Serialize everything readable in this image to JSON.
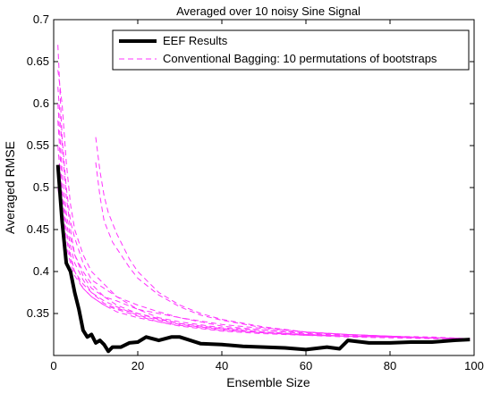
{
  "chart_data": {
    "type": "line",
    "title": "Averaged  over 10 noisy Sine Signal",
    "xlabel": "Ensemble Size",
    "ylabel": "Averaged RMSE",
    "xlim": [
      0,
      100
    ],
    "ylim": [
      0.3,
      0.7
    ],
    "xticks": [
      0,
      20,
      40,
      60,
      80,
      100
    ],
    "yticks": [
      0.35,
      0.4,
      0.45,
      0.5,
      0.55,
      0.6,
      0.65,
      0.7
    ],
    "ytick_labels": [
      "0.35",
      "0.4",
      "0.45",
      "0.5",
      "0.55",
      "0.6",
      "0.65",
      "0.7"
    ],
    "grid": false,
    "legend_position": "top-right",
    "series": [
      {
        "name": "EEF Results",
        "color": "#000000",
        "style": "solid",
        "x": [
          1,
          2,
          3,
          4,
          5,
          6,
          7,
          8,
          9,
          10,
          11,
          12,
          13,
          14,
          16,
          18,
          20,
          22,
          25,
          28,
          30,
          35,
          40,
          45,
          50,
          55,
          60,
          65,
          68,
          70,
          75,
          80,
          85,
          90,
          95,
          99
        ],
        "values": [
          0.527,
          0.46,
          0.41,
          0.4,
          0.375,
          0.355,
          0.33,
          0.322,
          0.325,
          0.315,
          0.318,
          0.313,
          0.305,
          0.31,
          0.31,
          0.315,
          0.316,
          0.322,
          0.318,
          0.322,
          0.322,
          0.314,
          0.313,
          0.311,
          0.31,
          0.309,
          0.307,
          0.31,
          0.308,
          0.318,
          0.315,
          0.315,
          0.316,
          0.316,
          0.318,
          0.319
        ]
      },
      {
        "name": "Conventional Bagging: 10 permutations of bootstraps",
        "color": "#ff33ff",
        "style": "dashed",
        "x": [
          1,
          2,
          3,
          4,
          5,
          7,
          9,
          12,
          15,
          20,
          25,
          30,
          40,
          50,
          60,
          70,
          80,
          90,
          99
        ],
        "values": [
          0.67,
          0.56,
          0.5,
          0.46,
          0.44,
          0.41,
          0.39,
          0.38,
          0.37,
          0.355,
          0.35,
          0.345,
          0.335,
          0.33,
          0.327,
          0.325,
          0.323,
          0.322,
          0.32
        ]
      },
      {
        "name": "",
        "color": "#ff33ff",
        "style": "dashed",
        "x": [
          1,
          2,
          3,
          4,
          5,
          7,
          9,
          12,
          15,
          20,
          25,
          30,
          40,
          50,
          60,
          70,
          80,
          90,
          99
        ],
        "values": [
          0.64,
          0.6,
          0.53,
          0.48,
          0.45,
          0.42,
          0.4,
          0.385,
          0.37,
          0.36,
          0.352,
          0.345,
          0.337,
          0.332,
          0.328,
          0.325,
          0.323,
          0.321,
          0.32
        ]
      },
      {
        "name": "",
        "color": "#ff33ff",
        "style": "dashed",
        "x": [
          1,
          2,
          3,
          4,
          5,
          7,
          9,
          12,
          15,
          20,
          25,
          30,
          40,
          50,
          60,
          70,
          80,
          90,
          99
        ],
        "values": [
          0.62,
          0.55,
          0.49,
          0.45,
          0.42,
          0.4,
          0.385,
          0.37,
          0.365,
          0.355,
          0.345,
          0.34,
          0.333,
          0.33,
          0.326,
          0.324,
          0.322,
          0.321,
          0.32
        ]
      },
      {
        "name": "",
        "color": "#ff33ff",
        "style": "dashed",
        "x": [
          1,
          2,
          3,
          4,
          5,
          7,
          9,
          12,
          15,
          20,
          25,
          30,
          40,
          50,
          60,
          70,
          80,
          90,
          99
        ],
        "values": [
          0.6,
          0.52,
          0.47,
          0.44,
          0.42,
          0.395,
          0.38,
          0.37,
          0.36,
          0.35,
          0.343,
          0.338,
          0.332,
          0.328,
          0.325,
          0.323,
          0.322,
          0.321,
          0.32
        ]
      },
      {
        "name": "",
        "color": "#ff33ff",
        "style": "dashed",
        "x": [
          1,
          2,
          3,
          4,
          5,
          7,
          9,
          12,
          15,
          20,
          25,
          30,
          40,
          50,
          60,
          70,
          80,
          90,
          99
        ],
        "values": [
          0.58,
          0.5,
          0.46,
          0.43,
          0.41,
          0.39,
          0.375,
          0.365,
          0.358,
          0.348,
          0.342,
          0.337,
          0.331,
          0.327,
          0.325,
          0.323,
          0.322,
          0.321,
          0.32
        ]
      },
      {
        "name": "",
        "color": "#ff33ff",
        "style": "dashed",
        "x": [
          1,
          2,
          3,
          4,
          5,
          7,
          9,
          12,
          15,
          20,
          25,
          30,
          40,
          50,
          60,
          70,
          80,
          90,
          99
        ],
        "values": [
          0.55,
          0.49,
          0.45,
          0.42,
          0.4,
          0.38,
          0.37,
          0.36,
          0.355,
          0.347,
          0.34,
          0.336,
          0.33,
          0.327,
          0.324,
          0.323,
          0.322,
          0.321,
          0.32
        ]
      },
      {
        "name": "",
        "color": "#ff33ff",
        "style": "dashed",
        "x": [
          1,
          2,
          3,
          4,
          5,
          7,
          9,
          12,
          15,
          20,
          25,
          30,
          40,
          50,
          60,
          70,
          80,
          90,
          99
        ],
        "values": [
          0.52,
          0.48,
          0.44,
          0.415,
          0.4,
          0.385,
          0.375,
          0.362,
          0.356,
          0.35,
          0.344,
          0.338,
          0.332,
          0.328,
          0.325,
          0.323,
          0.322,
          0.321,
          0.32
        ]
      },
      {
        "name": "",
        "color": "#ff33ff",
        "style": "dashed",
        "x": [
          10,
          11,
          12,
          13,
          15,
          18,
          20,
          25,
          30,
          35,
          40,
          50,
          60,
          70,
          80,
          90,
          99
        ],
        "values": [
          0.56,
          0.52,
          0.49,
          0.47,
          0.445,
          0.415,
          0.4,
          0.375,
          0.36,
          0.35,
          0.343,
          0.334,
          0.328,
          0.325,
          0.323,
          0.321,
          0.32
        ]
      },
      {
        "name": "",
        "color": "#ff33ff",
        "style": "dashed",
        "x": [
          10,
          11,
          12,
          14,
          16,
          18,
          20,
          25,
          30,
          35,
          40,
          50,
          60,
          70,
          80,
          90,
          99
        ],
        "values": [
          0.53,
          0.49,
          0.46,
          0.435,
          0.42,
          0.405,
          0.392,
          0.372,
          0.358,
          0.348,
          0.342,
          0.333,
          0.328,
          0.325,
          0.323,
          0.321,
          0.32
        ]
      },
      {
        "name": "",
        "color": "#ff33ff",
        "style": "dashed",
        "x": [
          1,
          2,
          3,
          4,
          5,
          7,
          9,
          12,
          15,
          20,
          25,
          30,
          40,
          50,
          60,
          70,
          80,
          90,
          99
        ],
        "values": [
          0.5,
          0.46,
          0.43,
          0.41,
          0.395,
          0.38,
          0.37,
          0.36,
          0.352,
          0.345,
          0.34,
          0.335,
          0.329,
          0.326,
          0.324,
          0.322,
          0.321,
          0.32,
          0.32
        ]
      }
    ]
  }
}
